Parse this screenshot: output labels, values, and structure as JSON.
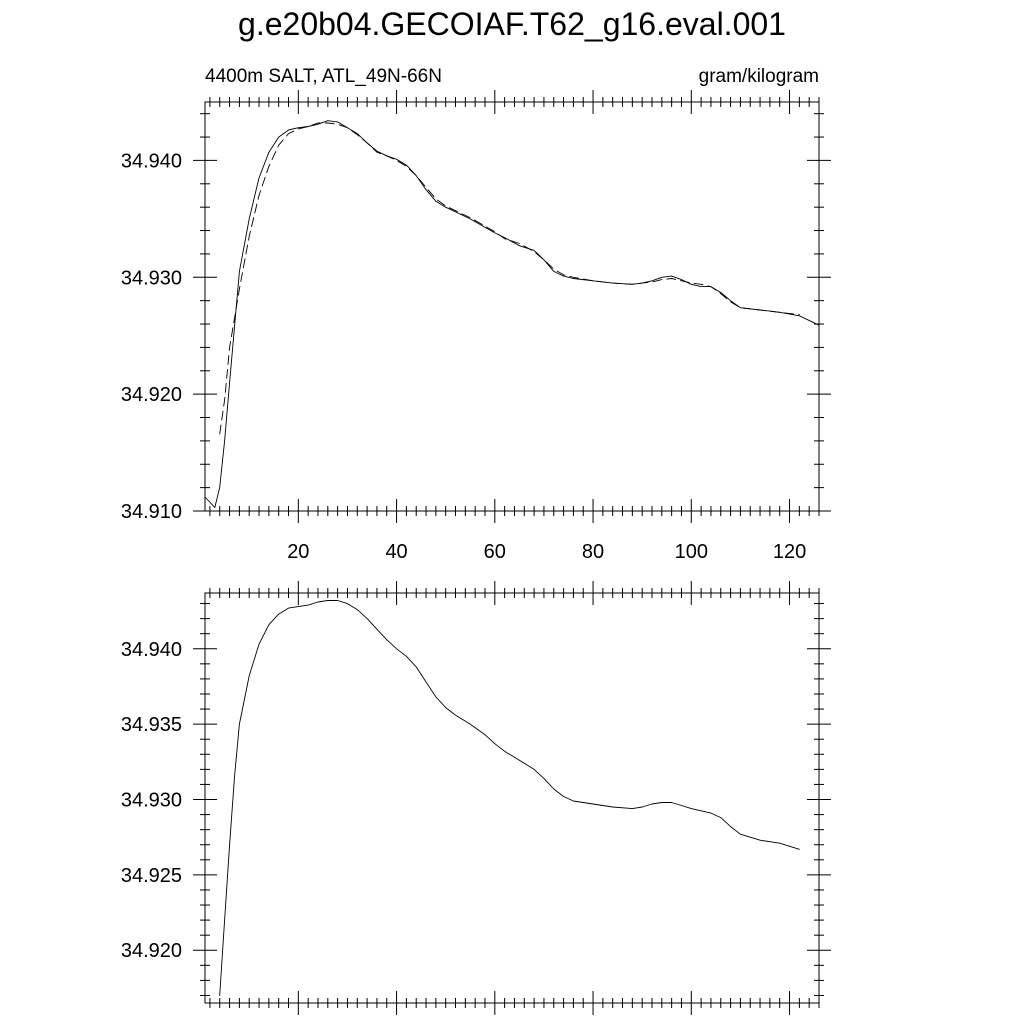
{
  "title": "g.e20b04.GECOIAF.T62_g16.eval.001",
  "chart_data": [
    {
      "type": "line",
      "left_label": "4400m SALT, ATL_49N-66N",
      "right_label": "gram/kilogram",
      "xlim": [
        1,
        126
      ],
      "ylim": [
        34.91,
        34.945
      ],
      "x_ticks": [
        20,
        40,
        60,
        80,
        100,
        120
      ],
      "x_tick_labels": [
        "20",
        "40",
        "60",
        "80",
        "100",
        "120"
      ],
      "y_ticks": [
        34.91,
        34.92,
        34.93,
        34.94
      ],
      "y_tick_labels": [
        "34.910",
        "34.920",
        "34.930",
        "34.940"
      ],
      "series": [
        {
          "style": "solid",
          "x": [
            1,
            3,
            4,
            5,
            6,
            8,
            10,
            12,
            14,
            16,
            18,
            20,
            22,
            24,
            26,
            28,
            30,
            32,
            34,
            36,
            38,
            40,
            42,
            44,
            46,
            48,
            50,
            55,
            60,
            62,
            65,
            68,
            70,
            72,
            74,
            76,
            80,
            84,
            88,
            90,
            92,
            94,
            96,
            98,
            100,
            102,
            104,
            106,
            108,
            110,
            114,
            118,
            122,
            126
          ],
          "y": [
            34.9112,
            34.9103,
            34.912,
            34.916,
            34.921,
            34.9305,
            34.935,
            34.9385,
            34.9407,
            34.942,
            34.9426,
            34.9428,
            34.9429,
            34.9431,
            34.9434,
            34.9433,
            34.9428,
            34.9423,
            34.9415,
            34.9408,
            34.9404,
            34.9401,
            34.9396,
            34.9387,
            34.9375,
            34.9365,
            34.936,
            34.935,
            34.9338,
            34.9334,
            34.9327,
            34.9323,
            34.9315,
            34.9305,
            34.9301,
            34.9299,
            34.9297,
            34.9295,
            34.9294,
            34.9295,
            34.9297,
            34.93,
            34.9301,
            34.9298,
            34.9294,
            34.9292,
            34.9292,
            34.9287,
            34.928,
            34.9274,
            34.9272,
            34.927,
            34.9267,
            34.9259
          ]
        },
        {
          "style": "dashed",
          "x": [
            4,
            5,
            6,
            8,
            10,
            12,
            14,
            16,
            18,
            20,
            22,
            24,
            26,
            28,
            30,
            32,
            34,
            36,
            38,
            40,
            42,
            44,
            46,
            48,
            50,
            55,
            60,
            62,
            65,
            68,
            70,
            72,
            74,
            76,
            80,
            84,
            88,
            90,
            92,
            94,
            96,
            98,
            100,
            102,
            104,
            106,
            108,
            110,
            114,
            118,
            122
          ],
          "y": [
            34.9166,
            34.9195,
            34.924,
            34.929,
            34.9335,
            34.937,
            34.9395,
            34.9413,
            34.9423,
            34.9427,
            34.9429,
            34.9432,
            34.9432,
            34.9431,
            34.9428,
            34.9422,
            34.9415,
            34.9407,
            34.9404,
            34.94,
            34.9395,
            34.9387,
            34.9377,
            34.9367,
            34.9361,
            34.9351,
            34.9339,
            34.9333,
            34.9329,
            34.9322,
            34.9315,
            34.9307,
            34.9302,
            34.93,
            34.9297,
            34.9295,
            34.9294,
            34.9295,
            34.9296,
            34.9298,
            34.9299,
            34.9297,
            34.9295,
            34.9294,
            34.9292,
            34.9286,
            34.9279,
            34.9274,
            34.9272,
            34.927,
            34.9268
          ]
        }
      ]
    },
    {
      "type": "line",
      "xlim": [
        1,
        126
      ],
      "ylim": [
        34.9165,
        34.9437
      ],
      "x_ticks": [
        20,
        40,
        60,
        80,
        100,
        120
      ],
      "y_ticks": [
        34.92,
        34.925,
        34.93,
        34.935,
        34.94
      ],
      "y_tick_labels": [
        "34.920",
        "34.925",
        "34.930",
        "34.935",
        "34.940"
      ],
      "series": [
        {
          "style": "solid",
          "x": [
            4,
            5,
            6,
            7,
            8,
            10,
            12,
            14,
            16,
            18,
            20,
            22,
            24,
            26,
            28,
            30,
            32,
            34,
            36,
            38,
            40,
            42,
            44,
            46,
            48,
            50,
            52,
            55,
            58,
            60,
            62,
            64,
            66,
            68,
            70,
            72,
            74,
            76,
            80,
            84,
            88,
            90,
            92,
            94,
            96,
            98,
            100,
            104,
            106,
            108,
            110,
            114,
            118,
            122
          ],
          "y": [
            34.917,
            34.922,
            34.927,
            34.9315,
            34.935,
            34.9382,
            34.9403,
            34.9416,
            34.9423,
            34.9427,
            34.9428,
            34.9429,
            34.9431,
            34.9432,
            34.9432,
            34.943,
            34.9426,
            34.942,
            34.9413,
            34.9406,
            34.94,
            34.9395,
            34.9388,
            34.9378,
            34.9368,
            34.9361,
            34.9356,
            34.935,
            34.9343,
            34.9337,
            34.9332,
            34.9328,
            34.9324,
            34.932,
            34.9314,
            34.9307,
            34.9302,
            34.9299,
            34.9297,
            34.9295,
            34.9294,
            34.9295,
            34.9297,
            34.9298,
            34.9298,
            34.9296,
            34.9294,
            34.9291,
            34.9288,
            34.9282,
            34.9277,
            34.9273,
            34.9271,
            34.9267
          ]
        }
      ]
    }
  ]
}
